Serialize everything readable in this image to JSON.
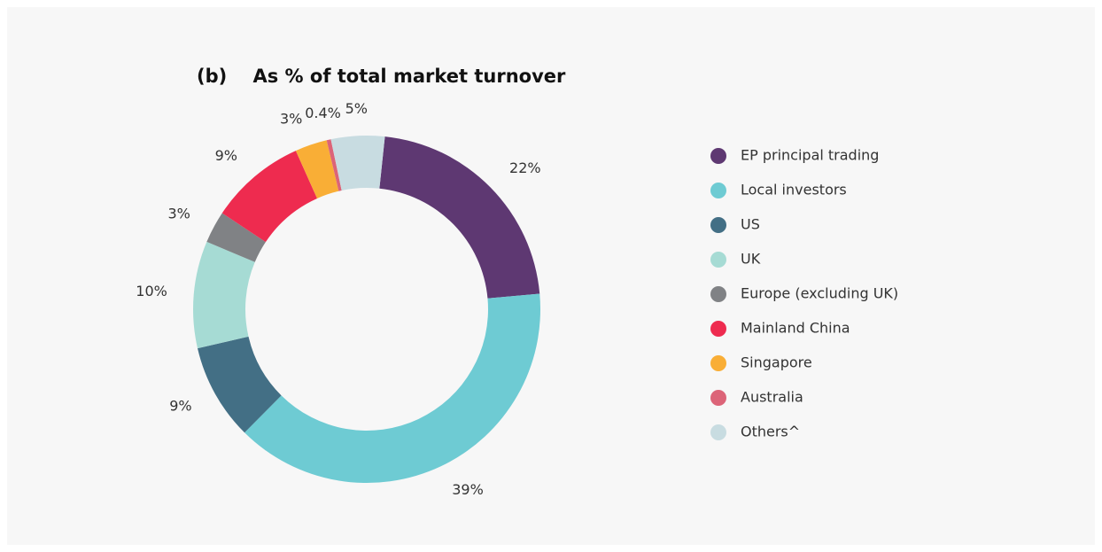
{
  "chart_data": {
    "type": "donut",
    "title": "(b)    As % of total market turnover",
    "categories": [
      "EP principal trading",
      "Local investors",
      "US",
      "UK",
      "Europe (excluding UK)",
      "Mainland China",
      "Singapore",
      "Australia",
      "Others^"
    ],
    "values": [
      22,
      39,
      9,
      10,
      3,
      9,
      3,
      0.4,
      5
    ],
    "value_labels": [
      "22%",
      "39%",
      "9%",
      "10%",
      "3%",
      "9%",
      "3%",
      "0.4%",
      "5%"
    ],
    "colors": [
      "#5e3872",
      "#6ecbd3",
      "#436f85",
      "#a6dbd4",
      "#808285",
      "#ee2b4f",
      "#f9ae36",
      "#dc6478",
      "#c8dce1"
    ],
    "legend": "right"
  }
}
